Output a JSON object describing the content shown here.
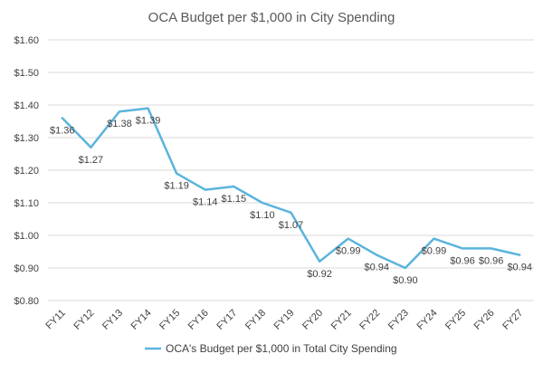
{
  "chart_data": {
    "type": "line",
    "title": "OCA Budget per $1,000 in City Spending",
    "xlabel": "",
    "ylabel": "",
    "categories": [
      "FY11",
      "FY12",
      "FY13",
      "FY14",
      "FY15",
      "FY16",
      "FY17",
      "FY18",
      "FY19",
      "FY20",
      "FY21",
      "FY22",
      "FY23",
      "FY24",
      "FY25",
      "FY26",
      "FY27"
    ],
    "series": [
      {
        "name": "OCA's Budget per $1,000 in Total City Spending",
        "values": [
          1.36,
          1.27,
          1.38,
          1.39,
          1.19,
          1.14,
          1.15,
          1.1,
          1.07,
          0.92,
          0.99,
          0.94,
          0.9,
          0.99,
          0.96,
          0.96,
          0.94
        ],
        "data_labels": [
          "$1.36",
          "$1.27",
          "$1.38",
          "$1.39",
          "$1.19",
          "$1.14",
          "$1.15",
          "$1.10",
          "$1.07",
          "$0.92",
          "$0.99",
          "$0.94",
          "$0.90",
          "$0.99",
          "$0.96",
          "$0.96",
          "$0.94"
        ],
        "color": "#5bb4dc"
      }
    ],
    "ylim": [
      0.8,
      1.6
    ],
    "y_ticks": [
      0.8,
      0.9,
      1.0,
      1.1,
      1.2,
      1.3,
      1.4,
      1.5,
      1.6
    ],
    "y_tick_labels": [
      "$0.80",
      "$0.90",
      "$1.00",
      "$1.10",
      "$1.20",
      "$1.30",
      "$1.40",
      "$1.50",
      "$1.60"
    ],
    "grid": true,
    "legend_position": "bottom",
    "colors": {
      "line": "#5bb4dc",
      "grid": "#d9d9d9",
      "text": "#404040",
      "title": "#595959"
    }
  }
}
